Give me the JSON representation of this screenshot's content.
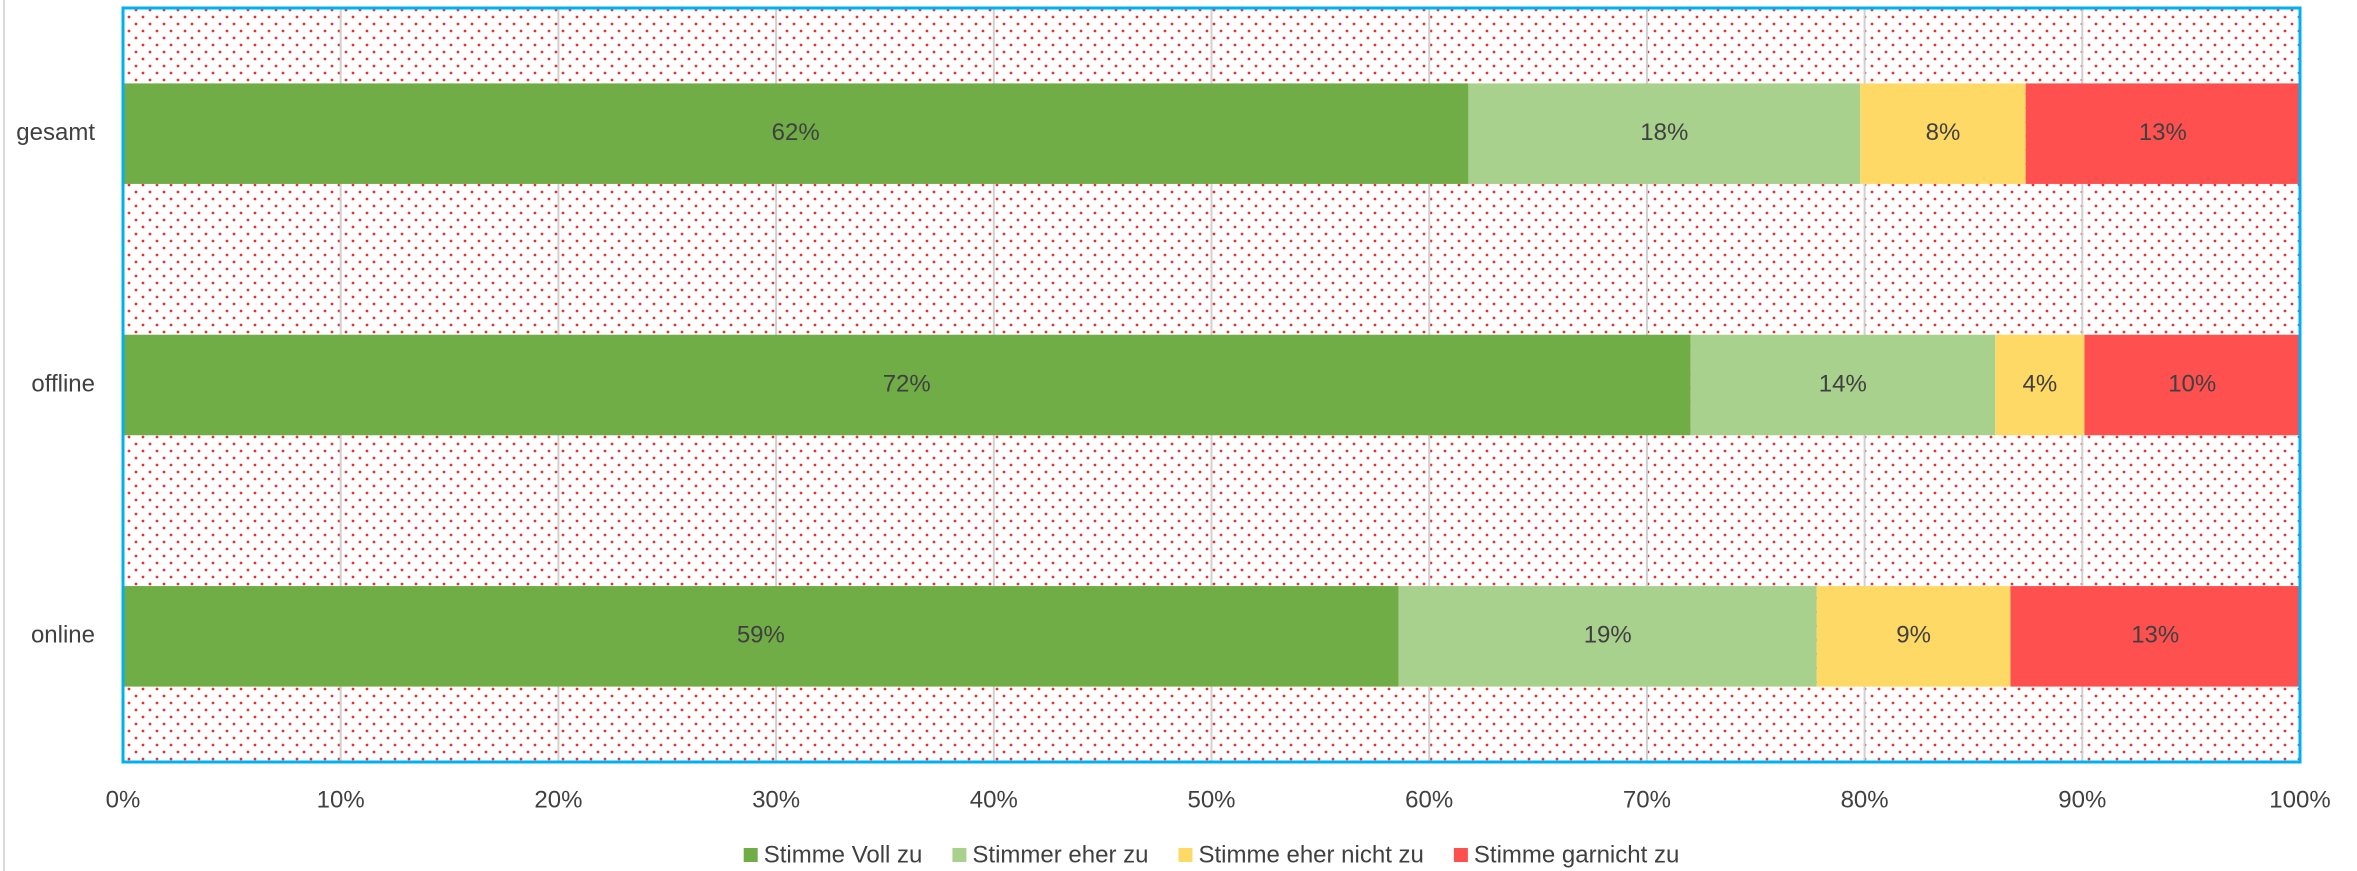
{
  "chart_data": {
    "type": "stacked_bar_horizontal",
    "categories": [
      "gesamt",
      "offline",
      "online"
    ],
    "series": [
      {
        "name": "Stimme Voll zu",
        "color": "#70ad47",
        "values": [
          61.8,
          72.0,
          58.6
        ],
        "value_labels": [
          "62%",
          "72%",
          "59%"
        ]
      },
      {
        "name": "Stimmer eher zu",
        "color": "#a9d18e",
        "values": [
          18.0,
          14.0,
          19.2
        ],
        "value_labels": [
          "18%",
          "14%",
          "19%"
        ]
      },
      {
        "name": "Stimme eher nicht zu",
        "color": "#ffd966",
        "values": [
          7.6,
          4.1,
          8.9
        ],
        "value_labels": [
          "8%",
          "4%",
          "9%"
        ]
      },
      {
        "name": "Stimme garnicht zu",
        "color": "#ff5050",
        "values": [
          12.6,
          9.9,
          13.3
        ],
        "value_labels": [
          "13%",
          "10%",
          "13%"
        ]
      }
    ],
    "xlim": [
      0,
      100
    ],
    "xticks": [
      {
        "value": 0,
        "label": "0%"
      },
      {
        "value": 10,
        "label": "10%"
      },
      {
        "value": 20,
        "label": "20%"
      },
      {
        "value": 30,
        "label": "30%"
      },
      {
        "value": 40,
        "label": "40%"
      },
      {
        "value": 50,
        "label": "50%"
      },
      {
        "value": 60,
        "label": "60%"
      },
      {
        "value": 70,
        "label": "70%"
      },
      {
        "value": 80,
        "label": "80%"
      },
      {
        "value": 90,
        "label": "90%"
      },
      {
        "value": 100,
        "label": "100%"
      }
    ],
    "grid": true,
    "legend": "bottom"
  }
}
